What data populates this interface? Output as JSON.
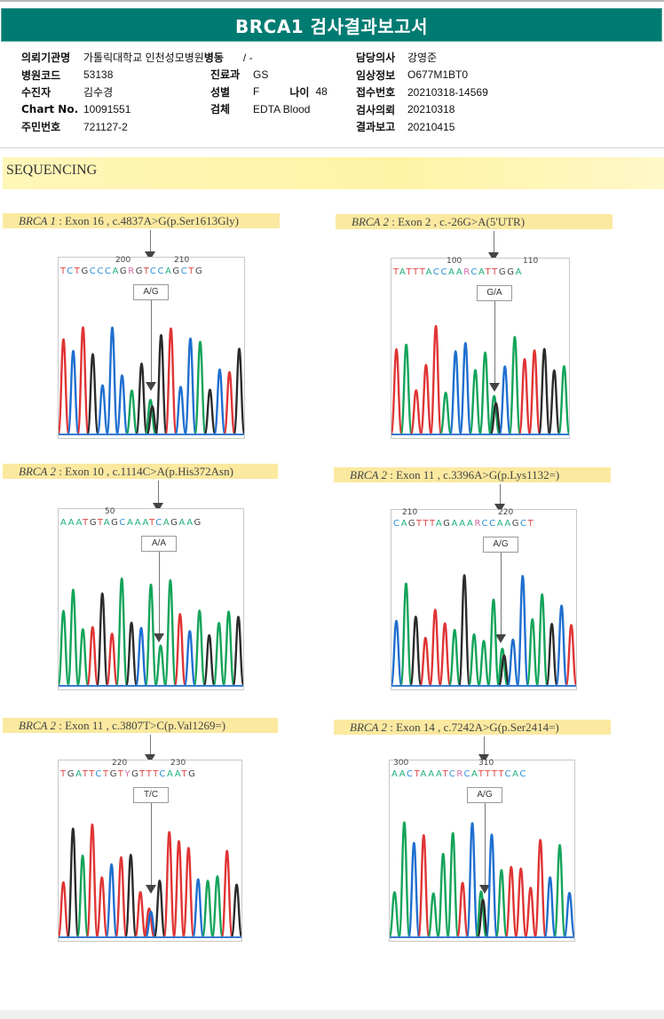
{
  "report": {
    "title": "BRCA1 검사결과보고서",
    "info_left": [
      {
        "label": "의뢰기관명",
        "value": "가톨릭대학교 인천성모병원"
      },
      {
        "label": "병원코드",
        "value": "53138"
      },
      {
        "label": "수진자",
        "value": "김수경"
      },
      {
        "label": "Chart No.",
        "value": "10091551"
      },
      {
        "label": "주민번호",
        "value": "721127-2"
      }
    ],
    "ward": {
      "label": "병동",
      "value": "/ -"
    },
    "info_mid": [
      {
        "label": "진료과",
        "value": "GS"
      },
      {
        "label": "성별",
        "value": "F"
      },
      {
        "label": "검체",
        "value": "EDTA Blood"
      }
    ],
    "age": {
      "label": "나이",
      "value": "48"
    },
    "info_right": [
      {
        "label": "담당의사",
        "value": "강영준"
      },
      {
        "label": "임상정보",
        "value": "O677M1BT0"
      },
      {
        "label": "접수번호",
        "value": "20210318-14569"
      },
      {
        "label": "검사의뢰",
        "value": "20210318"
      },
      {
        "label": "결과보고",
        "value": "20210415"
      }
    ]
  },
  "section": {
    "title": "SEQUENCING"
  },
  "variants": [
    {
      "gene": "BRCA 1",
      "desc": ": Exon 16 , c.4837A>G(p.Ser1613Gly)",
      "sequence": "TCTGCCCAGRGTCCAGCTG",
      "pos_labels": [
        "200",
        "210"
      ],
      "call": "A/G"
    },
    {
      "gene": "BRCA 2",
      "desc": ": Exon 2 , c.-26G>A(5'UTR)",
      "sequence": "TATTTACCAARCATTGGA",
      "pos_labels": [
        "100",
        "110"
      ],
      "call": "G/A"
    },
    {
      "gene": "BRCA 2",
      "desc": ": Exon 10 , c.1114C>A(p.His372Asn)",
      "sequence": "AAATGTAGCAAATCAGAAG",
      "pos_labels": [
        "50"
      ],
      "call": "A/A"
    },
    {
      "gene": "BRCA 2",
      "desc": ": Exon 11 , c.3396A>G(p.Lys1132=)",
      "sequence": "CAGTTTAGAAARCCAAGCT",
      "pos_labels": [
        "210",
        "220"
      ],
      "call": "A/G"
    },
    {
      "gene": "BRCA 2",
      "desc": ": Exon 11 , c.3807T>C(p.Val1269=)",
      "sequence": "TGATTCTGTYGTTTCAATG",
      "pos_labels": [
        "220",
        "230"
      ],
      "call": "T/C"
    },
    {
      "gene": "BRCA 2",
      "desc": ": Exon 14 , c.7242A>G(p.Ser2414=)",
      "sequence": "AACTAAATCRCATTTTCAC",
      "pos_labels": [
        "300",
        "310"
      ],
      "call": "A/G"
    }
  ],
  "colors": {
    "header": "#007b72",
    "band": "#fff3a6",
    "base_A": "#1fb07a",
    "base_C": "#2c8fd8",
    "base_G": "#444444",
    "base_T": "#e04848"
  }
}
